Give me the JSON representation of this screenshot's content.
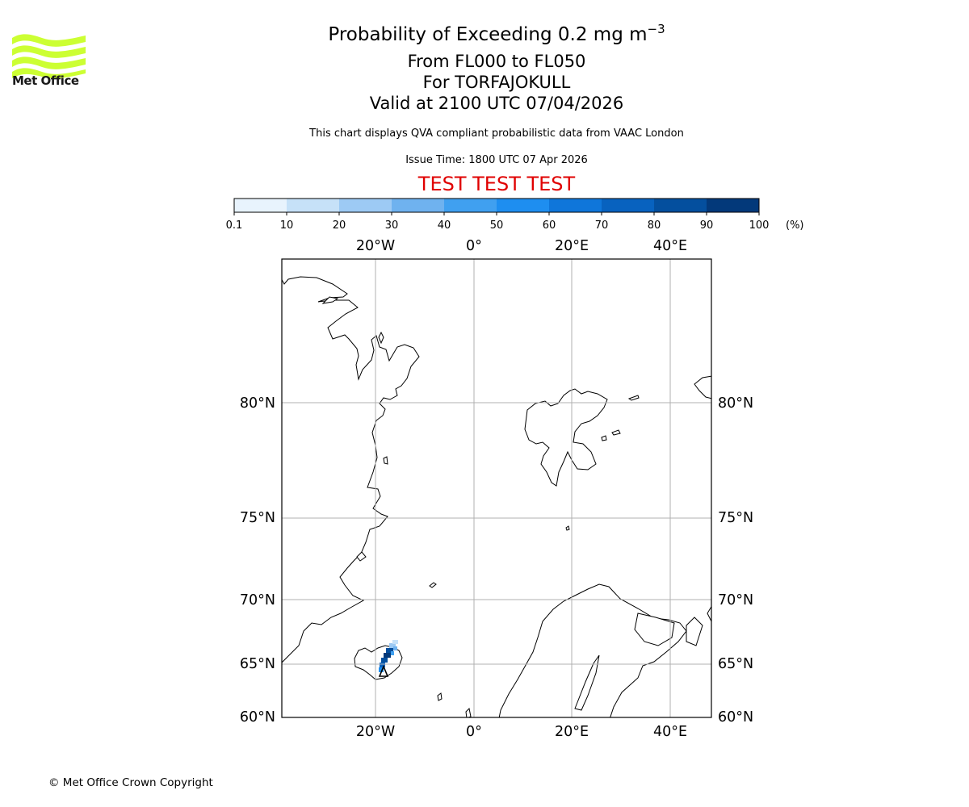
{
  "branding": {
    "logo_text": "Met Office",
    "logo_color": "#ccff33",
    "copyright": "© Met Office Crown Copyright"
  },
  "titles": {
    "main_prefix": "Probability of Exceeding 0.2 mg m",
    "main_exponent": "−3",
    "flight_levels": "From FL000 to FL050",
    "volcano": "For TORFAJOKULL",
    "valid_time": "Valid at 2100 UTC 07/04/2026",
    "description": "This chart displays QVA compliant probabilistic data from VAAC London",
    "issue_time": "Issue Time: 1800 UTC 07 Apr 2026",
    "test_banner": "TEST TEST TEST",
    "test_banner_color": "#e00000"
  },
  "colorbar": {
    "unit_label": "(%)",
    "tick_labels": [
      "0.1",
      "10",
      "20",
      "30",
      "40",
      "50",
      "60",
      "70",
      "80",
      "90",
      "100"
    ],
    "colors": [
      "#e8f3fd",
      "#c6e1f8",
      "#9dcaf4",
      "#6fb2ef",
      "#40a0f0",
      "#1e8ef0",
      "#0f76da",
      "#0862bf",
      "#044f9e",
      "#03397a",
      "#022a58"
    ]
  },
  "map": {
    "lon_labels": [
      "20°W",
      "0°",
      "20°E",
      "40°E"
    ],
    "lat_labels": [
      "80°N",
      "75°N",
      "70°N",
      "65°N",
      "60°N"
    ],
    "gridline_color": "#b0b0b0",
    "grid": true,
    "source_marker": "volcano-triangle"
  }
}
